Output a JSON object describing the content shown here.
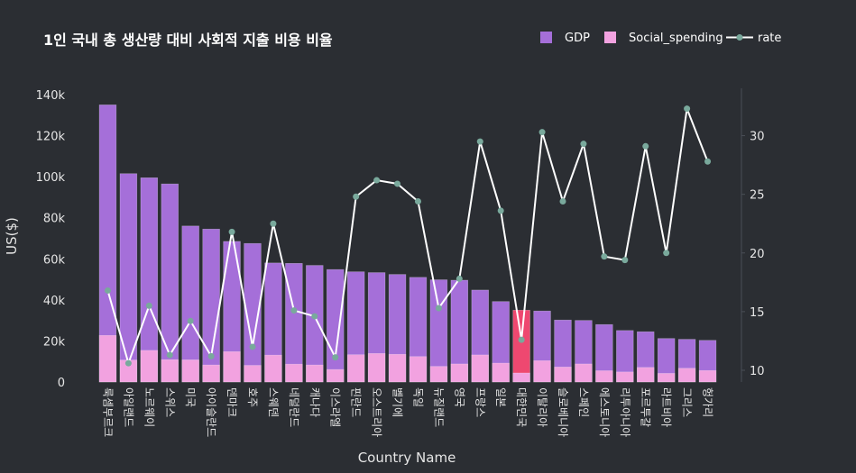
{
  "chart_data": {
    "type": "bar",
    "title": "1인 국내 총 생산량 대비 사회적 지출 비용 비율",
    "xlabel": "Country Name",
    "ylabel": "US($)",
    "ylim": [
      0,
      140000
    ],
    "y2lim": [
      9,
      33.5
    ],
    "grid": false,
    "legend_position": "top-right",
    "y_ticks": [
      0,
      20000,
      40000,
      60000,
      80000,
      100000,
      120000,
      140000
    ],
    "y_tick_labels": [
      "0",
      "20k",
      "40k",
      "60k",
      "80k",
      "100k",
      "120k",
      "140k"
    ],
    "y2_ticks": [
      10,
      15,
      20,
      25,
      30
    ],
    "y2_tick_labels": [
      "10",
      "15",
      "20",
      "25",
      "30"
    ],
    "categories": [
      "룩셈부르크",
      "아일랜드",
      "노르웨이",
      "스위스",
      "미국",
      "아이슬란드",
      "덴마크",
      "호주",
      "스웨덴",
      "네덜란드",
      "캐나다",
      "이스라엘",
      "핀란드",
      "오스트리아",
      "벨기에",
      "독일",
      "뉴질랜드",
      "영국",
      "프랑스",
      "일본",
      "대한민국",
      "이탈리아",
      "슬로베니아",
      "스페인",
      "에스토니아",
      "리투아니아",
      "포르투갈",
      "라트비아",
      "그리스",
      "헝가리"
    ],
    "highlight_category": "대한민국",
    "series": [
      {
        "name": "GDP",
        "type": "bar",
        "color": "#a56fd9",
        "highlight_color": "#ee4870",
        "values": [
          135000,
          101500,
          99500,
          96500,
          76000,
          74500,
          68500,
          67500,
          58000,
          57800,
          56800,
          54800,
          53700,
          53300,
          52400,
          51000,
          49800,
          49600,
          44800,
          39200,
          35000,
          34600,
          30200,
          30000,
          28000,
          25100,
          24500,
          21200,
          20800,
          20300
        ]
      },
      {
        "name": "Social_spending",
        "type": "bar",
        "color": "#f2a2e0",
        "values": [
          22700,
          10700,
          15400,
          10900,
          10800,
          8300,
          14800,
          8100,
          13100,
          8700,
          8300,
          6100,
          13300,
          13900,
          13500,
          12400,
          7600,
          8800,
          13200,
          9200,
          4400,
          10400,
          7300,
          8800,
          5500,
          4900,
          7100,
          4200,
          6700,
          5600
        ]
      },
      {
        "name": "rate",
        "type": "line",
        "color": "#ffffff",
        "marker_color": "#79a99c",
        "values": [
          16.8,
          10.6,
          15.5,
          11.3,
          14.2,
          11.2,
          21.8,
          12.0,
          22.5,
          15.1,
          14.6,
          11.1,
          24.8,
          26.2,
          25.9,
          24.4,
          15.3,
          17.8,
          29.5,
          23.6,
          12.6,
          30.3,
          24.4,
          29.3,
          19.7,
          19.4,
          29.1,
          20.0,
          32.3,
          27.8
        ]
      }
    ]
  }
}
